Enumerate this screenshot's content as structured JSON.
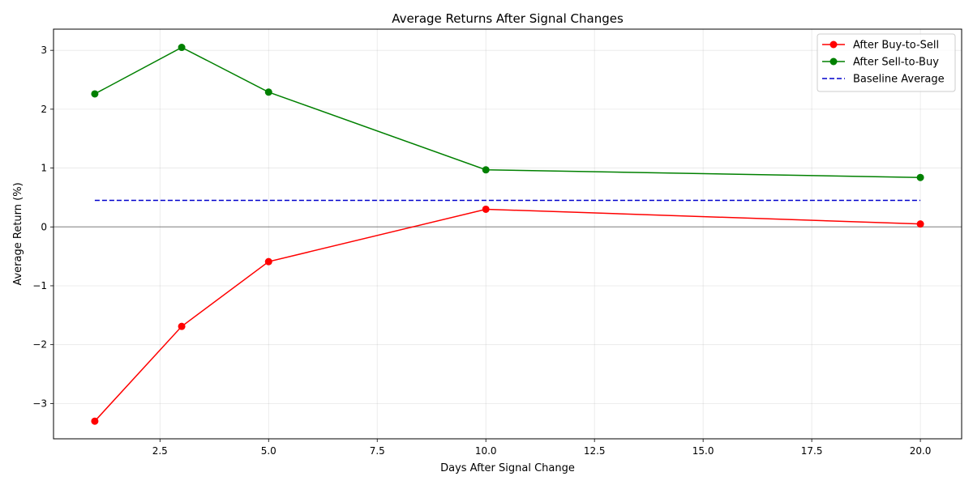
{
  "chart_data": {
    "type": "line",
    "title": "Average Returns After Signal Changes",
    "xlabel": "Days After Signal Change",
    "ylabel": "Average Return (%)",
    "xlim": [
      0.05,
      20.95
    ],
    "ylim": [
      -3.6,
      3.36
    ],
    "x_ticks": [
      2.5,
      5.0,
      7.5,
      10.0,
      12.5,
      15.0,
      17.5,
      20.0
    ],
    "x_tick_labels": [
      "2.5",
      "5.0",
      "7.5",
      "10.0",
      "12.5",
      "15.0",
      "17.5",
      "20.0"
    ],
    "y_ticks": [
      -3,
      -2,
      -1,
      0,
      1,
      2,
      3
    ],
    "y_tick_labels": [
      "−3",
      "−2",
      "−1",
      "0",
      "1",
      "2",
      "3"
    ],
    "grid": true,
    "legend_position": "top-right",
    "zero_line": true,
    "series": [
      {
        "name": "After Buy-to-Sell",
        "color": "#ff0000",
        "style": "solid",
        "marker": "circle",
        "x": [
          1,
          3,
          5,
          10,
          20
        ],
        "y": [
          -3.3,
          -1.69,
          -0.59,
          0.3,
          0.05
        ]
      },
      {
        "name": "After Sell-to-Buy",
        "color": "#008000",
        "style": "solid",
        "marker": "circle",
        "x": [
          1,
          3,
          5,
          10,
          20
        ],
        "y": [
          2.26,
          3.05,
          2.29,
          0.97,
          0.84
        ]
      },
      {
        "name": "Baseline Average",
        "color": "#0000cc",
        "style": "dashed",
        "marker": "none",
        "x": [
          1,
          20
        ],
        "y": [
          0.45,
          0.45
        ]
      }
    ]
  }
}
